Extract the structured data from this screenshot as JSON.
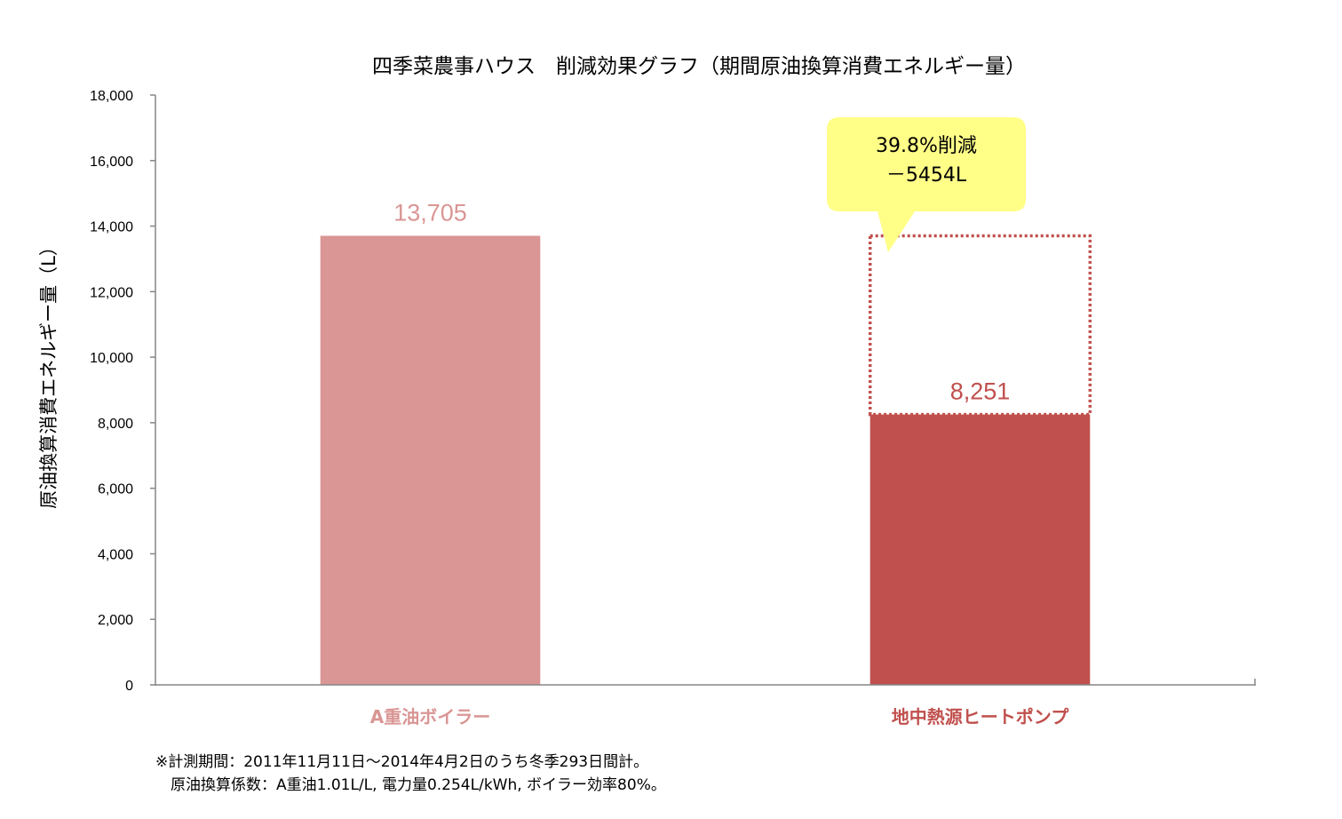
{
  "chart_data": {
    "type": "bar",
    "title": "四季菜農事ハウス　削減効果グラフ（期間原油換算消費エネルギー量）",
    "xlabel": "",
    "ylabel": "原油換算消費エネルギー量（L）",
    "ylim": [
      0,
      18000
    ],
    "yticks": [
      0,
      2000,
      4000,
      6000,
      8000,
      10000,
      12000,
      14000,
      16000,
      18000
    ],
    "ytick_labels": [
      "0",
      "2,000",
      "4,000",
      "6,000",
      "8,000",
      "10,000",
      "12,000",
      "14,000",
      "16,000",
      "18,000"
    ],
    "categories": [
      "A重油ボイラー",
      "地中熱源ヒートポンプ"
    ],
    "values": [
      13705,
      8251
    ],
    "value_labels": [
      "13,705",
      "8,251"
    ],
    "reference_value": 13705,
    "grid": false,
    "legend": "none",
    "colors": {
      "bars": [
        "#d99694",
        "#c0504d"
      ],
      "labels": [
        "#d99694",
        "#c0504d"
      ],
      "dashed_outline": "#c0504d",
      "callout_fill": "#ffff88",
      "axis": "#868686"
    },
    "annotation": {
      "line1": "39.8%削減",
      "line2": "－5454L"
    }
  },
  "footnote": {
    "line1": "※計測期間：2011年11月11日～2014年4月2日のうち冬季293日間計。",
    "line2": "　原油換算係数：A重油1.01L/L, 電力量0.254L/kWh, ボイラー効率80%。"
  }
}
